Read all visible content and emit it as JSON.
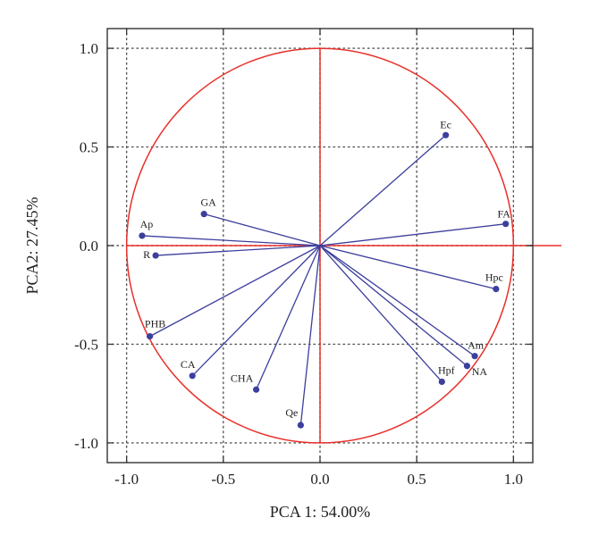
{
  "chart_data": {
    "type": "scatter",
    "subtype": "pca-correlation-circle",
    "xlabel": "PCA 1: 54.00%",
    "ylabel": "PCA2: 27.45%",
    "xlim": [
      -1.1,
      1.1
    ],
    "ylim": [
      -1.1,
      1.1
    ],
    "xticks": [
      "-1.0",
      "-0.5",
      "0.0",
      "0.5",
      "1.0"
    ],
    "yticks": [
      "-1.0",
      "-0.5",
      "0.0",
      "0.5",
      "1.0"
    ],
    "grid": true,
    "circle_radius": 1.0,
    "colors": {
      "circle": "#e8302a",
      "vectors": "#3c3f9c",
      "points": "#3c3f9c",
      "grid": "#555555"
    },
    "series": [
      {
        "points": [
          {
            "label": "Ec",
            "x": 0.65,
            "y": 0.56
          },
          {
            "label": "FA",
            "x": 0.96,
            "y": 0.11
          },
          {
            "label": "Hpc",
            "x": 0.91,
            "y": -0.22
          },
          {
            "label": "Am",
            "x": 0.8,
            "y": -0.56
          },
          {
            "label": "NA",
            "x": 0.76,
            "y": -0.61
          },
          {
            "label": "Hpf",
            "x": 0.63,
            "y": -0.69
          },
          {
            "label": "Qe",
            "x": -0.1,
            "y": -0.91
          },
          {
            "label": "CHA",
            "x": -0.33,
            "y": -0.73
          },
          {
            "label": "CA",
            "x": -0.66,
            "y": -0.66
          },
          {
            "label": "PHB",
            "x": -0.88,
            "y": -0.46
          },
          {
            "label": "R",
            "x": -0.85,
            "y": -0.05
          },
          {
            "label": "Ap",
            "x": -0.92,
            "y": 0.05
          },
          {
            "label": "GA",
            "x": -0.6,
            "y": 0.16
          }
        ]
      }
    ]
  }
}
